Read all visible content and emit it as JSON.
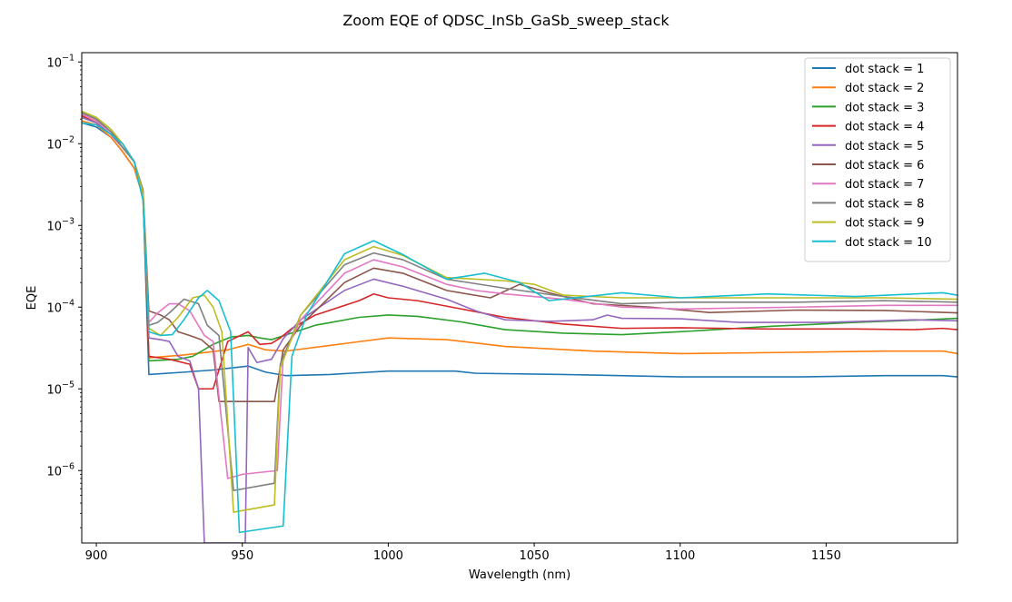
{
  "chart_data": {
    "type": "line",
    "title": "Zoom EQE of QDSC_InSb_GaSb_sweep_stack",
    "xlabel": "Wavelength (nm)",
    "ylabel": "EQE",
    "yscale": "log",
    "xlim": [
      895,
      1195
    ],
    "ylim": [
      1.3e-07,
      0.13
    ],
    "xticks": [
      900,
      950,
      1000,
      1050,
      1100,
      1150
    ],
    "yticks": [
      {
        "value": 1e-06,
        "base": "10",
        "exp": "−6"
      },
      {
        "value": 1e-05,
        "base": "10",
        "exp": "−5"
      },
      {
        "value": 0.0001,
        "base": "10",
        "exp": "−4"
      },
      {
        "value": 0.001,
        "base": "10",
        "exp": "−3"
      },
      {
        "value": 0.01,
        "base": "10",
        "exp": "−2"
      },
      {
        "value": 0.1,
        "base": "10",
        "exp": "−1"
      }
    ],
    "grid": false,
    "legend_position": "top-right",
    "series": [
      {
        "name": "dot stack = 1",
        "color": "#1f77b4",
        "points": [
          [
            895,
            0.018
          ],
          [
            900,
            0.016
          ],
          [
            905,
            0.012
          ],
          [
            909,
            0.008
          ],
          [
            913,
            0.005
          ],
          [
            916,
            0.0022
          ],
          [
            918,
            1.5e-05
          ],
          [
            930,
            1.6e-05
          ],
          [
            940,
            1.7e-05
          ],
          [
            952,
            1.9e-05
          ],
          [
            958,
            1.6e-05
          ],
          [
            965,
            1.45e-05
          ],
          [
            980,
            1.5e-05
          ],
          [
            1000,
            1.65e-05
          ],
          [
            1023,
            1.65e-05
          ],
          [
            1030,
            1.55e-05
          ],
          [
            1060,
            1.5e-05
          ],
          [
            1100,
            1.4e-05
          ],
          [
            1140,
            1.4e-05
          ],
          [
            1170,
            1.45e-05
          ],
          [
            1190,
            1.45e-05
          ],
          [
            1195,
            1.4e-05
          ]
        ]
      },
      {
        "name": "dot stack = 2",
        "color": "#ff7f0e",
        "points": [
          [
            895,
            0.019
          ],
          [
            900,
            0.017
          ],
          [
            905,
            0.012
          ],
          [
            909,
            0.008
          ],
          [
            913,
            0.005
          ],
          [
            916,
            0.0022
          ],
          [
            918,
            2.4e-05
          ],
          [
            930,
            2.6e-05
          ],
          [
            945,
            3e-05
          ],
          [
            952,
            3.5e-05
          ],
          [
            958,
            3e-05
          ],
          [
            965,
            2.9e-05
          ],
          [
            980,
            3.4e-05
          ],
          [
            1000,
            4.2e-05
          ],
          [
            1020,
            4e-05
          ],
          [
            1040,
            3.3e-05
          ],
          [
            1070,
            2.9e-05
          ],
          [
            1100,
            2.7e-05
          ],
          [
            1140,
            2.8e-05
          ],
          [
            1170,
            2.9e-05
          ],
          [
            1190,
            2.9e-05
          ],
          [
            1195,
            2.7e-05
          ]
        ]
      },
      {
        "name": "dot stack = 3",
        "color": "#2ca02c",
        "points": [
          [
            895,
            0.021
          ],
          [
            900,
            0.018
          ],
          [
            905,
            0.013
          ],
          [
            909,
            0.009
          ],
          [
            913,
            0.006
          ],
          [
            916,
            0.0024
          ],
          [
            918,
            2.2e-05
          ],
          [
            928,
            2.3e-05
          ],
          [
            933,
            2.5e-05
          ],
          [
            940,
            3.5e-05
          ],
          [
            946,
            4.3e-05
          ],
          [
            952,
            4.5e-05
          ],
          [
            956,
            4.2e-05
          ],
          [
            960,
            4e-05
          ],
          [
            966,
            4.7e-05
          ],
          [
            975,
            6e-05
          ],
          [
            990,
            7.5e-05
          ],
          [
            1000,
            8e-05
          ],
          [
            1010,
            7.7e-05
          ],
          [
            1025,
            6.6e-05
          ],
          [
            1040,
            5.3e-05
          ],
          [
            1060,
            4.8e-05
          ],
          [
            1080,
            4.6e-05
          ],
          [
            1100,
            5e-05
          ],
          [
            1130,
            5.8e-05
          ],
          [
            1160,
            6.5e-05
          ],
          [
            1180,
            6.9e-05
          ],
          [
            1195,
            7.3e-05
          ]
        ]
      },
      {
        "name": "dot stack = 4",
        "color": "#d62728",
        "points": [
          [
            895,
            0.022
          ],
          [
            900,
            0.018
          ],
          [
            905,
            0.013
          ],
          [
            909,
            0.009
          ],
          [
            913,
            0.006
          ],
          [
            916,
            0.0024
          ],
          [
            918,
            2.5e-05
          ],
          [
            925,
            2.3e-05
          ],
          [
            932,
            2e-05
          ],
          [
            935,
            1e-05
          ],
          [
            940,
            1e-05
          ],
          [
            945,
            3.8e-05
          ],
          [
            952,
            5e-05
          ],
          [
            956,
            3.5e-05
          ],
          [
            960,
            3.6e-05
          ],
          [
            963,
            4.2e-05
          ],
          [
            967,
            5.5e-05
          ],
          [
            975,
            8e-05
          ],
          [
            990,
            0.00012
          ],
          [
            995,
            0.000145
          ],
          [
            1000,
            0.00013
          ],
          [
            1010,
            0.00012
          ],
          [
            1025,
            9.5e-05
          ],
          [
            1040,
            7.5e-05
          ],
          [
            1060,
            6.2e-05
          ],
          [
            1080,
            5.5e-05
          ],
          [
            1100,
            5.6e-05
          ],
          [
            1130,
            5.4e-05
          ],
          [
            1160,
            5.4e-05
          ],
          [
            1180,
            5.3e-05
          ],
          [
            1190,
            5.5e-05
          ],
          [
            1195,
            5.3e-05
          ]
        ]
      },
      {
        "name": "dot stack = 5",
        "color": "#9467bd",
        "points": [
          [
            895,
            0.021
          ],
          [
            900,
            0.018
          ],
          [
            905,
            0.013
          ],
          [
            909,
            0.009
          ],
          [
            913,
            0.006
          ],
          [
            916,
            0.0024
          ],
          [
            918,
            4.2e-05
          ],
          [
            922,
            4e-05
          ],
          [
            925,
            3.8e-05
          ],
          [
            928,
            2.5e-05
          ],
          [
            932,
            2.2e-05
          ],
          [
            935,
            1e-05
          ],
          [
            937,
            1.3e-07
          ],
          [
            951,
            1.3e-07
          ],
          [
            952,
            3.2e-05
          ],
          [
            955,
            2.1e-05
          ],
          [
            960,
            2.3e-05
          ],
          [
            964,
            4.1e-05
          ],
          [
            970,
            7e-05
          ],
          [
            985,
            0.00016
          ],
          [
            995,
            0.00022
          ],
          [
            1005,
            0.00018
          ],
          [
            1020,
            0.000125
          ],
          [
            1030,
            9e-05
          ],
          [
            1040,
            7e-05
          ],
          [
            1055,
            6.7e-05
          ],
          [
            1070,
            7e-05
          ],
          [
            1075,
            8e-05
          ],
          [
            1080,
            7.3e-05
          ],
          [
            1100,
            7.2e-05
          ],
          [
            1120,
            6.5e-05
          ],
          [
            1150,
            6.5e-05
          ],
          [
            1180,
            7e-05
          ],
          [
            1195,
            6.8e-05
          ]
        ]
      },
      {
        "name": "dot stack = 6",
        "color": "#8c564b",
        "points": [
          [
            895,
            0.024
          ],
          [
            900,
            0.02
          ],
          [
            905,
            0.014
          ],
          [
            909,
            0.01
          ],
          [
            913,
            0.006
          ],
          [
            916,
            0.0027
          ],
          [
            918,
            9e-05
          ],
          [
            922,
            8e-05
          ],
          [
            925,
            7e-05
          ],
          [
            928,
            5e-05
          ],
          [
            932,
            4.5e-05
          ],
          [
            936,
            4e-05
          ],
          [
            940,
            3e-05
          ],
          [
            942,
            7e-06
          ],
          [
            961,
            7e-06
          ],
          [
            964,
            3e-05
          ],
          [
            970,
            6e-05
          ],
          [
            985,
            0.0002
          ],
          [
            995,
            0.0003
          ],
          [
            1005,
            0.00026
          ],
          [
            1020,
            0.00016
          ],
          [
            1035,
            0.00013
          ],
          [
            1045,
            0.00019
          ],
          [
            1055,
            0.00015
          ],
          [
            1070,
            0.00011
          ],
          [
            1090,
            0.0001
          ],
          [
            1110,
            8.6e-05
          ],
          [
            1140,
            9.2e-05
          ],
          [
            1170,
            9.1e-05
          ],
          [
            1195,
            8.5e-05
          ]
        ]
      },
      {
        "name": "dot stack = 7",
        "color": "#e377c2",
        "points": [
          [
            895,
            0.023
          ],
          [
            900,
            0.019
          ],
          [
            905,
            0.014
          ],
          [
            909,
            0.009
          ],
          [
            913,
            0.006
          ],
          [
            916,
            0.0025
          ],
          [
            918,
            6.5e-05
          ],
          [
            921,
            8.5e-05
          ],
          [
            925,
            0.00011
          ],
          [
            928,
            0.00011
          ],
          [
            932,
            9e-05
          ],
          [
            937,
            4.5e-05
          ],
          [
            940,
            3.8e-05
          ],
          [
            945,
            8e-07
          ],
          [
            950,
            9e-07
          ],
          [
            962,
            1e-06
          ],
          [
            964,
            2.5e-05
          ],
          [
            970,
            7e-05
          ],
          [
            985,
            0.00026
          ],
          [
            995,
            0.00038
          ],
          [
            1005,
            0.00031
          ],
          [
            1020,
            0.00019
          ],
          [
            1030,
            0.00016
          ],
          [
            1040,
            0.000145
          ],
          [
            1060,
            0.000125
          ],
          [
            1080,
            0.0001
          ],
          [
            1100,
            9.5e-05
          ],
          [
            1140,
            0.0001
          ],
          [
            1170,
            0.000105
          ],
          [
            1195,
            0.000105
          ]
        ]
      },
      {
        "name": "dot stack = 8",
        "color": "#7f7f7f",
        "points": [
          [
            895,
            0.024
          ],
          [
            900,
            0.02
          ],
          [
            905,
            0.014
          ],
          [
            909,
            0.009
          ],
          [
            913,
            0.006
          ],
          [
            916,
            0.0026
          ],
          [
            918,
            6e-05
          ],
          [
            921,
            6.5e-05
          ],
          [
            925,
            8.5e-05
          ],
          [
            930,
            0.000125
          ],
          [
            935,
            0.00011
          ],
          [
            938,
            6e-05
          ],
          [
            942,
            4.5e-05
          ],
          [
            947,
            5.7e-07
          ],
          [
            961,
            7e-07
          ],
          [
            963,
            2e-05
          ],
          [
            970,
            8e-05
          ],
          [
            985,
            0.00033
          ],
          [
            995,
            0.00046
          ],
          [
            1005,
            0.00038
          ],
          [
            1020,
            0.00022
          ],
          [
            1040,
            0.00017
          ],
          [
            1060,
            0.000135
          ],
          [
            1080,
            0.00011
          ],
          [
            1100,
            0.000115
          ],
          [
            1140,
            0.000115
          ],
          [
            1170,
            0.00012
          ],
          [
            1195,
            0.000115
          ]
        ]
      },
      {
        "name": "dot stack = 9",
        "color": "#bcbd22",
        "points": [
          [
            895,
            0.025
          ],
          [
            900,
            0.021
          ],
          [
            905,
            0.015
          ],
          [
            909,
            0.01
          ],
          [
            913,
            0.006
          ],
          [
            916,
            0.0025
          ],
          [
            918,
            5.5e-05
          ],
          [
            922,
            4.5e-05
          ],
          [
            928,
            7.5e-05
          ],
          [
            933,
            0.00013
          ],
          [
            937,
            0.00014
          ],
          [
            940,
            0.0001
          ],
          [
            943,
            5e-05
          ],
          [
            947,
            3.1e-07
          ],
          [
            961,
            3.8e-07
          ],
          [
            963,
            1.8e-05
          ],
          [
            970,
            8e-05
          ],
          [
            985,
            0.00038
          ],
          [
            995,
            0.00055
          ],
          [
            1005,
            0.00043
          ],
          [
            1020,
            0.00023
          ],
          [
            1040,
            0.00021
          ],
          [
            1050,
            0.00019
          ],
          [
            1060,
            0.00014
          ],
          [
            1080,
            0.00013
          ],
          [
            1100,
            0.00013
          ],
          [
            1140,
            0.00013
          ],
          [
            1170,
            0.00013
          ],
          [
            1195,
            0.000125
          ]
        ]
      },
      {
        "name": "dot stack = 10",
        "color": "#17becf",
        "points": [
          [
            895,
            0.018
          ],
          [
            900,
            0.017
          ],
          [
            905,
            0.013
          ],
          [
            909,
            0.01
          ],
          [
            913,
            0.006
          ],
          [
            916,
            0.002
          ],
          [
            918,
            5e-05
          ],
          [
            922,
            4.5e-05
          ],
          [
            926,
            4.6e-05
          ],
          [
            930,
            7e-05
          ],
          [
            935,
            0.00013
          ],
          [
            938,
            0.00016
          ],
          [
            942,
            0.00012
          ],
          [
            946,
            5e-05
          ],
          [
            949,
            1.75e-07
          ],
          [
            964,
            2.1e-07
          ],
          [
            967,
            2.5e-05
          ],
          [
            972,
            8e-05
          ],
          [
            985,
            0.00045
          ],
          [
            995,
            0.00065
          ],
          [
            1005,
            0.00044
          ],
          [
            1020,
            0.00022
          ],
          [
            1033,
            0.00026
          ],
          [
            1045,
            0.0002
          ],
          [
            1055,
            0.00012
          ],
          [
            1080,
            0.00015
          ],
          [
            1100,
            0.00013
          ],
          [
            1130,
            0.000145
          ],
          [
            1160,
            0.000135
          ],
          [
            1190,
            0.00015
          ],
          [
            1195,
            0.00014
          ]
        ]
      }
    ]
  }
}
